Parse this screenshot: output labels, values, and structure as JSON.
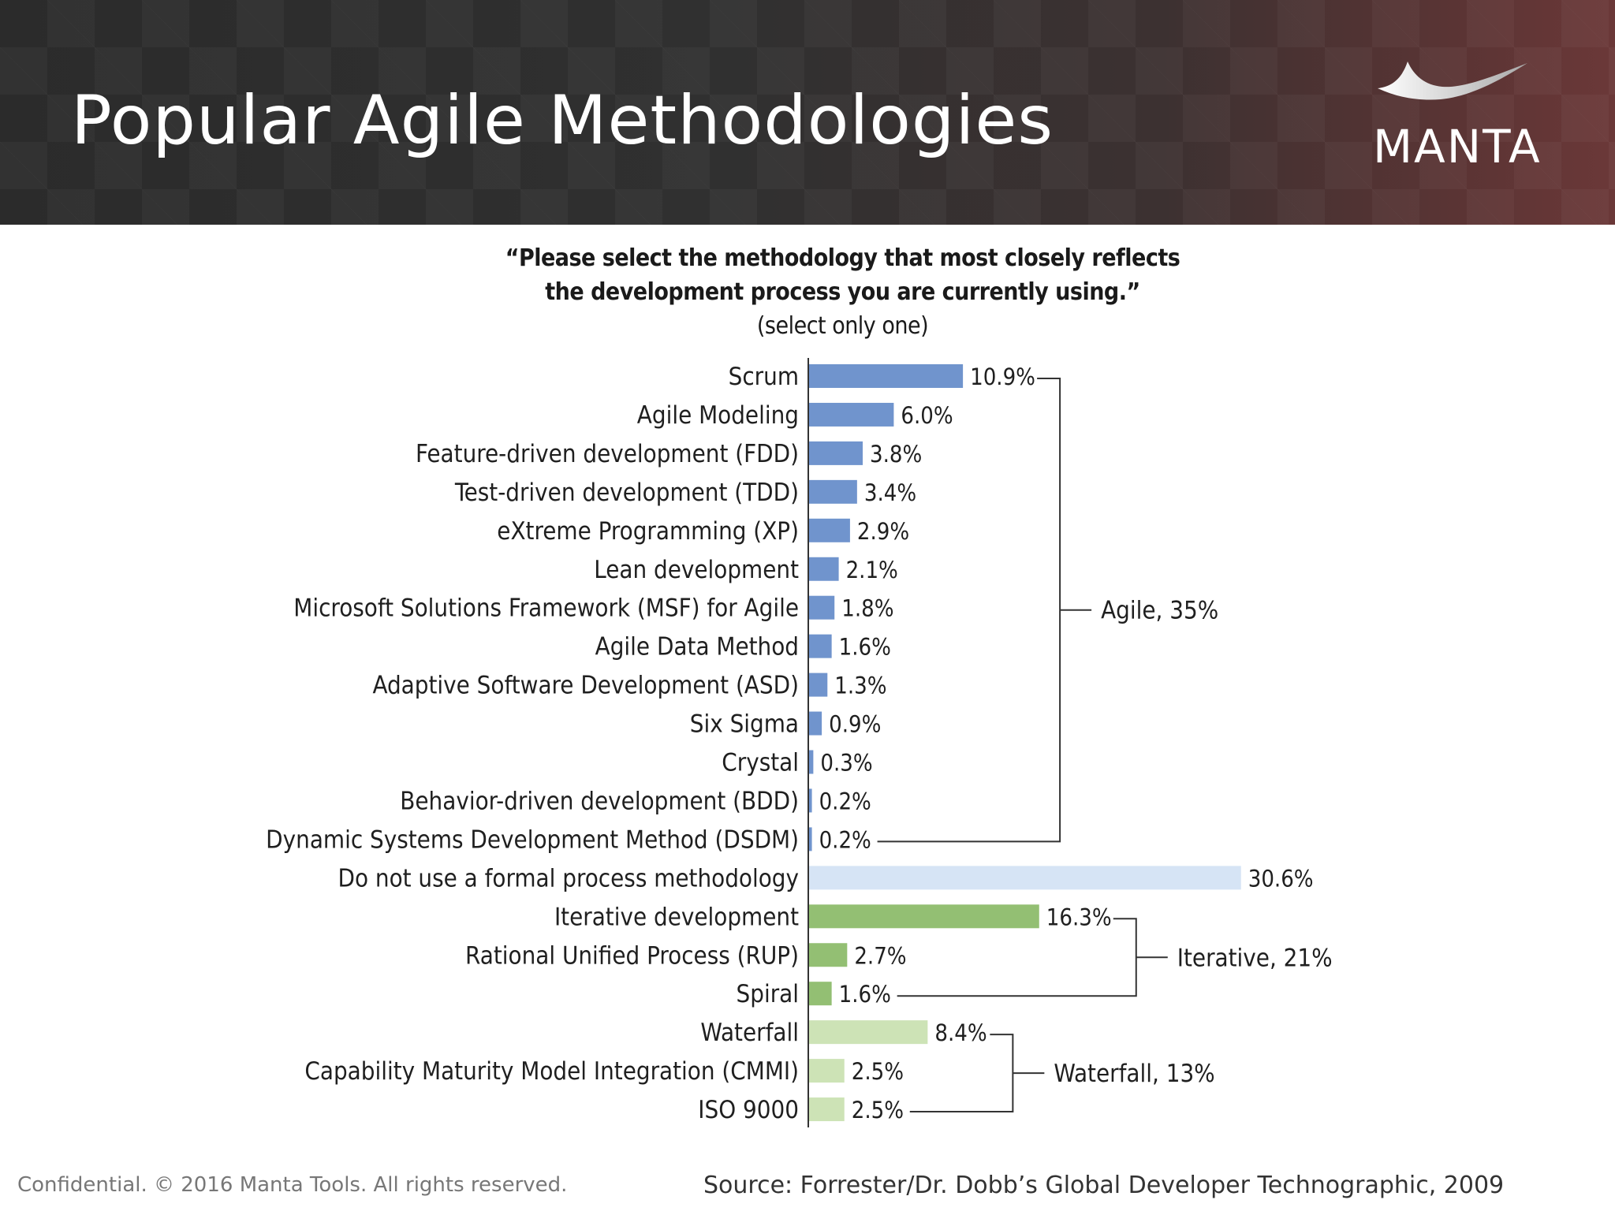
{
  "header": {
    "title": "Popular Agile Methodologies",
    "logo_text": "MANTA"
  },
  "question": {
    "line1": "“Please select the methodology that most closely reflects",
    "line2": "the development process you are currently using.”",
    "note": "(select only one)"
  },
  "chart_data": {
    "type": "bar",
    "orientation": "horizontal",
    "categories": [
      "Scrum",
      "Agile Modeling",
      "Feature-driven development (FDD)",
      "Test-driven development (TDD)",
      "eXtreme Programming (XP)",
      "Lean development",
      "Microsoft Solutions Framework (MSF) for Agile",
      "Agile Data Method",
      "Adaptive Software Development (ASD)",
      "Six Sigma",
      "Crystal",
      "Behavior-driven development (BDD)",
      "Dynamic Systems Development Method (DSDM)",
      "Do not use a formal process methodology",
      "Iterative development",
      "Rational Unified Process (RUP)",
      "Spiral",
      "Waterfall",
      "Capability Maturity Model Integration (CMMI)",
      "ISO 9000"
    ],
    "values": [
      10.9,
      6.0,
      3.8,
      3.4,
      2.9,
      2.1,
      1.8,
      1.6,
      1.3,
      0.9,
      0.3,
      0.2,
      0.2,
      30.6,
      16.3,
      2.7,
      1.6,
      8.4,
      2.5,
      2.5
    ],
    "value_labels": [
      "10.9%",
      "6.0%",
      "3.8%",
      "3.4%",
      "2.9%",
      "2.1%",
      "1.8%",
      "1.6%",
      "1.3%",
      "0.9%",
      "0.3%",
      "0.2%",
      "0.2%",
      "30.6%",
      "16.3%",
      "2.7%",
      "1.6%",
      "8.4%",
      "2.5%",
      "2.5%"
    ],
    "bar_colors": [
      "#7094cd",
      "#7094cd",
      "#7094cd",
      "#7094cd",
      "#7094cd",
      "#7094cd",
      "#7094cd",
      "#7094cd",
      "#7094cd",
      "#7094cd",
      "#7094cd",
      "#7094cd",
      "#7094cd",
      "#d6e4f5",
      "#93bf73",
      "#93bf73",
      "#93bf73",
      "#cde3b6",
      "#cde3b6",
      "#cde3b6"
    ],
    "xlim": [
      0,
      31
    ],
    "groups": [
      {
        "label": "Agile, 35%",
        "first": 0,
        "last": 12
      },
      {
        "label": "Iterative, 21%",
        "first": 14,
        "last": 16
      },
      {
        "label": "Waterfall, 13%",
        "first": 17,
        "last": 19
      }
    ],
    "xlabel": "",
    "ylabel": ""
  },
  "footer": {
    "left": "Confidential. © 2016 Manta Tools. All rights reserved.",
    "right": "Source: Forrester/Dr. Dobb’s Global Developer Technographic, 2009"
  }
}
